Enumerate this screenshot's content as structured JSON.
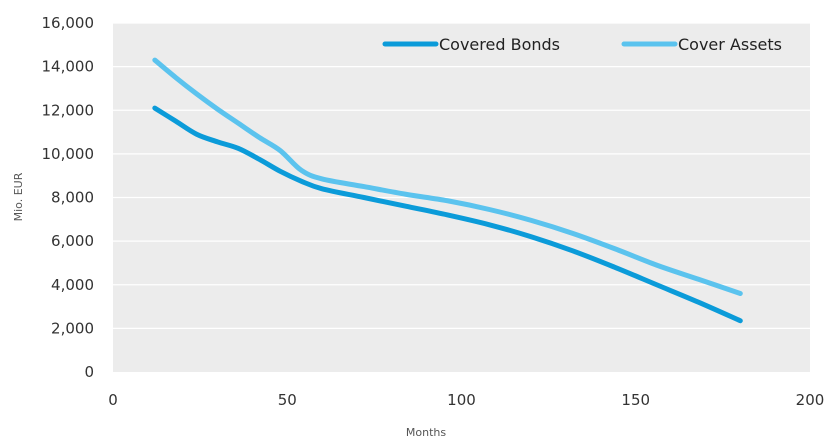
{
  "chart_data": {
    "type": "line",
    "xlabel": "Months",
    "ylabel": "Mio. EUR",
    "xlim": [
      0,
      200
    ],
    "ylim": [
      0,
      16000
    ],
    "x_ticks": [
      "0",
      "50",
      "100",
      "150",
      "200"
    ],
    "y_ticks": [
      "0",
      "2,000",
      "4,000",
      "6,000",
      "8,000",
      "10,000",
      "12,000",
      "14,000",
      "16,000"
    ],
    "grid": true,
    "legend_position": "top-right",
    "series": [
      {
        "name": "Covered Bonds",
        "color": "#0b9bd9",
        "points": [
          [
            12,
            12100
          ],
          [
            18,
            11500
          ],
          [
            24,
            10900
          ],
          [
            30,
            10550
          ],
          [
            36,
            10250
          ],
          [
            42,
            9750
          ],
          [
            48,
            9200
          ],
          [
            54,
            8750
          ],
          [
            60,
            8400
          ],
          [
            72,
            8000
          ],
          [
            84,
            7600
          ],
          [
            96,
            7200
          ],
          [
            108,
            6750
          ],
          [
            120,
            6200
          ],
          [
            132,
            5550
          ],
          [
            144,
            4800
          ],
          [
            156,
            4000
          ],
          [
            168,
            3200
          ],
          [
            180,
            2350
          ]
        ]
      },
      {
        "name": "Cover Assets",
        "color": "#5bc3ee",
        "points": [
          [
            12,
            14300
          ],
          [
            18,
            13500
          ],
          [
            24,
            12750
          ],
          [
            30,
            12050
          ],
          [
            36,
            11400
          ],
          [
            42,
            10750
          ],
          [
            48,
            10150
          ],
          [
            54,
            9250
          ],
          [
            60,
            8850
          ],
          [
            72,
            8500
          ],
          [
            84,
            8150
          ],
          [
            96,
            7850
          ],
          [
            108,
            7450
          ],
          [
            120,
            6950
          ],
          [
            132,
            6350
          ],
          [
            144,
            5650
          ],
          [
            156,
            4900
          ],
          [
            168,
            4250
          ],
          [
            180,
            3600
          ]
        ]
      }
    ]
  }
}
